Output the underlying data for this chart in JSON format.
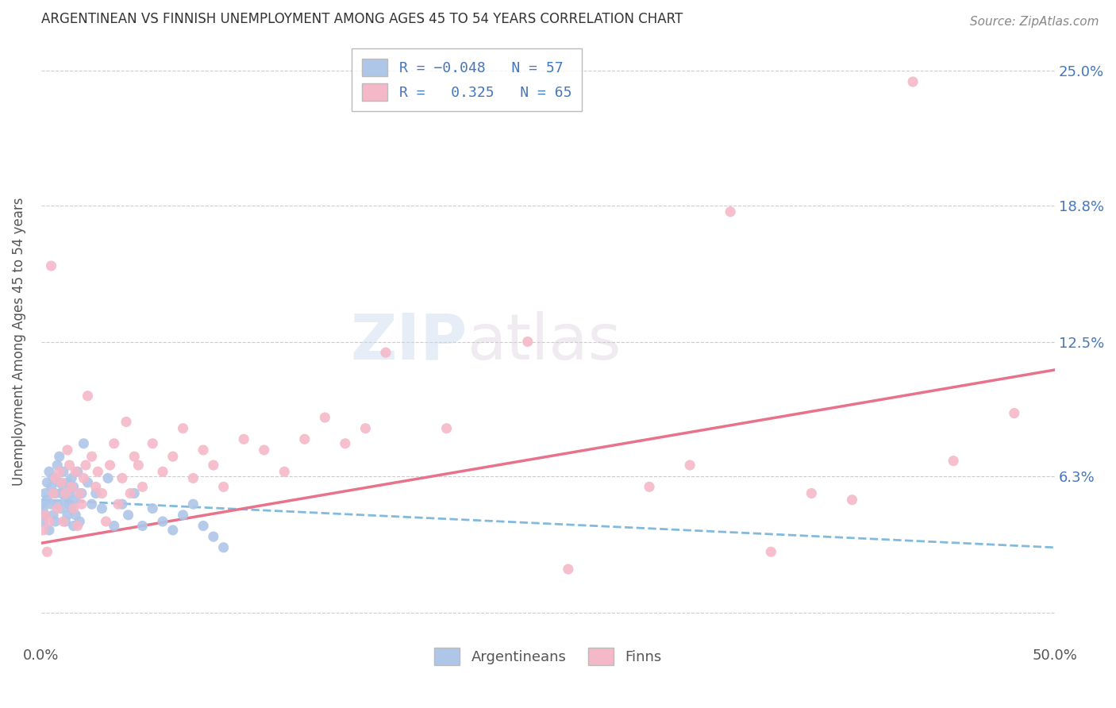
{
  "title": "ARGENTINEAN VS FINNISH UNEMPLOYMENT AMONG AGES 45 TO 54 YEARS CORRELATION CHART",
  "source": "Source: ZipAtlas.com",
  "ylabel": "Unemployment Among Ages 45 to 54 years",
  "xlim": [
    0.0,
    0.5
  ],
  "ylim": [
    -0.015,
    0.265
  ],
  "yticks": [
    0.0,
    0.063,
    0.125,
    0.188,
    0.25
  ],
  "ytick_labels": [
    "",
    "6.3%",
    "12.5%",
    "18.8%",
    "25.0%"
  ],
  "xtick_labels": [
    "0.0%",
    "50.0%"
  ],
  "xticks": [
    0.0,
    0.5
  ],
  "argentinean_color": "#aec6e8",
  "finn_color": "#f4b8c8",
  "argentinean_line_color": "#6baed6",
  "finn_line_color": "#e8728a",
  "background_color": "#ffffff",
  "grid_color": "#cccccc",
  "title_color": "#333333",
  "watermark": "ZIPatlas",
  "argentinean_data": [
    [
      0.0,
      0.05
    ],
    [
      0.001,
      0.048
    ],
    [
      0.001,
      0.042
    ],
    [
      0.002,
      0.055
    ],
    [
      0.002,
      0.045
    ],
    [
      0.003,
      0.06
    ],
    [
      0.003,
      0.052
    ],
    [
      0.004,
      0.065
    ],
    [
      0.004,
      0.038
    ],
    [
      0.005,
      0.058
    ],
    [
      0.005,
      0.05
    ],
    [
      0.006,
      0.062
    ],
    [
      0.006,
      0.045
    ],
    [
      0.007,
      0.055
    ],
    [
      0.007,
      0.042
    ],
    [
      0.008,
      0.068
    ],
    [
      0.008,
      0.05
    ],
    [
      0.009,
      0.06
    ],
    [
      0.009,
      0.072
    ],
    [
      0.01,
      0.055
    ],
    [
      0.01,
      0.048
    ],
    [
      0.011,
      0.065
    ],
    [
      0.011,
      0.058
    ],
    [
      0.012,
      0.052
    ],
    [
      0.012,
      0.042
    ],
    [
      0.013,
      0.06
    ],
    [
      0.013,
      0.045
    ],
    [
      0.014,
      0.055
    ],
    [
      0.014,
      0.05
    ],
    [
      0.015,
      0.048
    ],
    [
      0.015,
      0.062
    ],
    [
      0.016,
      0.04
    ],
    [
      0.016,
      0.058
    ],
    [
      0.017,
      0.052
    ],
    [
      0.017,
      0.045
    ],
    [
      0.018,
      0.065
    ],
    [
      0.019,
      0.042
    ],
    [
      0.02,
      0.055
    ],
    [
      0.021,
      0.078
    ],
    [
      0.023,
      0.06
    ],
    [
      0.025,
      0.05
    ],
    [
      0.027,
      0.055
    ],
    [
      0.03,
      0.048
    ],
    [
      0.033,
      0.062
    ],
    [
      0.036,
      0.04
    ],
    [
      0.04,
      0.05
    ],
    [
      0.043,
      0.045
    ],
    [
      0.046,
      0.055
    ],
    [
      0.05,
      0.04
    ],
    [
      0.055,
      0.048
    ],
    [
      0.06,
      0.042
    ],
    [
      0.065,
      0.038
    ],
    [
      0.07,
      0.045
    ],
    [
      0.075,
      0.05
    ],
    [
      0.08,
      0.04
    ],
    [
      0.085,
      0.035
    ],
    [
      0.09,
      0.03
    ]
  ],
  "finn_data": [
    [
      0.001,
      0.038
    ],
    [
      0.002,
      0.045
    ],
    [
      0.003,
      0.028
    ],
    [
      0.004,
      0.042
    ],
    [
      0.005,
      0.16
    ],
    [
      0.006,
      0.055
    ],
    [
      0.007,
      0.062
    ],
    [
      0.008,
      0.048
    ],
    [
      0.009,
      0.065
    ],
    [
      0.01,
      0.06
    ],
    [
      0.011,
      0.042
    ],
    [
      0.012,
      0.055
    ],
    [
      0.013,
      0.075
    ],
    [
      0.014,
      0.068
    ],
    [
      0.015,
      0.058
    ],
    [
      0.016,
      0.048
    ],
    [
      0.017,
      0.065
    ],
    [
      0.018,
      0.04
    ],
    [
      0.019,
      0.055
    ],
    [
      0.02,
      0.05
    ],
    [
      0.021,
      0.062
    ],
    [
      0.022,
      0.068
    ],
    [
      0.023,
      0.1
    ],
    [
      0.025,
      0.072
    ],
    [
      0.027,
      0.058
    ],
    [
      0.028,
      0.065
    ],
    [
      0.03,
      0.055
    ],
    [
      0.032,
      0.042
    ],
    [
      0.034,
      0.068
    ],
    [
      0.036,
      0.078
    ],
    [
      0.038,
      0.05
    ],
    [
      0.04,
      0.062
    ],
    [
      0.042,
      0.088
    ],
    [
      0.044,
      0.055
    ],
    [
      0.046,
      0.072
    ],
    [
      0.048,
      0.068
    ],
    [
      0.05,
      0.058
    ],
    [
      0.055,
      0.078
    ],
    [
      0.06,
      0.065
    ],
    [
      0.065,
      0.072
    ],
    [
      0.07,
      0.085
    ],
    [
      0.075,
      0.062
    ],
    [
      0.08,
      0.075
    ],
    [
      0.085,
      0.068
    ],
    [
      0.09,
      0.058
    ],
    [
      0.1,
      0.08
    ],
    [
      0.11,
      0.075
    ],
    [
      0.12,
      0.065
    ],
    [
      0.13,
      0.08
    ],
    [
      0.14,
      0.09
    ],
    [
      0.15,
      0.078
    ],
    [
      0.16,
      0.085
    ],
    [
      0.17,
      0.12
    ],
    [
      0.2,
      0.085
    ],
    [
      0.24,
      0.125
    ],
    [
      0.26,
      0.02
    ],
    [
      0.3,
      0.058
    ],
    [
      0.32,
      0.068
    ],
    [
      0.34,
      0.185
    ],
    [
      0.36,
      0.028
    ],
    [
      0.38,
      0.055
    ],
    [
      0.4,
      0.052
    ],
    [
      0.43,
      0.245
    ],
    [
      0.45,
      0.07
    ],
    [
      0.48,
      0.092
    ]
  ],
  "arg_line_x0": 0.0,
  "arg_line_y0": 0.052,
  "arg_line_x1": 0.5,
  "arg_line_y1": 0.03,
  "finn_line_x0": 0.0,
  "finn_line_y0": 0.032,
  "finn_line_x1": 0.5,
  "finn_line_y1": 0.112
}
